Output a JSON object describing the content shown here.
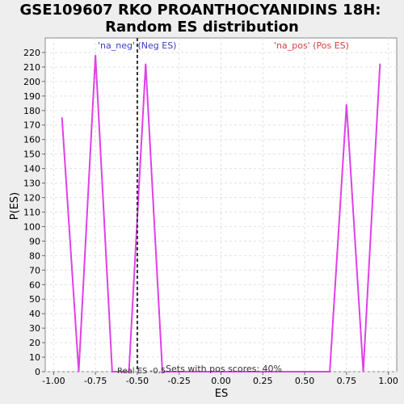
{
  "chart_data": {
    "type": "line",
    "title_lines": [
      "GSE109607 RKO PROANTHOCYANIDINS 18H:",
      "Random ES distribution"
    ],
    "xlabel": "ES",
    "ylabel": "P(ES)",
    "xlim": [
      -1.05,
      1.05
    ],
    "ylim": [
      0,
      230
    ],
    "x_ticks": [
      -1.0,
      -0.75,
      -0.5,
      -0.25,
      0.0,
      0.25,
      0.5,
      0.75,
      1.0
    ],
    "x_tick_labels": [
      "-1.00",
      "-0.75",
      "-0.50",
      "-0.25",
      "0.00",
      "0.25",
      "0.50",
      "0.75",
      "1.00"
    ],
    "y_ticks": [
      0,
      10,
      20,
      30,
      40,
      50,
      60,
      70,
      80,
      90,
      100,
      110,
      120,
      130,
      140,
      150,
      160,
      170,
      180,
      190,
      200,
      210,
      220
    ],
    "grid": true,
    "series": [
      {
        "color": "#e040e8",
        "x": [
          -0.95,
          -0.85,
          -0.75,
          -0.65,
          -0.55,
          -0.45,
          -0.35,
          -0.25,
          0.65,
          0.75,
          0.85,
          0.95
        ],
        "y": [
          175,
          0,
          218,
          0,
          0,
          212,
          0,
          0,
          0,
          184,
          0,
          212
        ]
      }
    ],
    "real_es_line": {
      "x": -0.5,
      "color": "#333333",
      "style": "dashed"
    },
    "annotations": {
      "neg_label": "'na_neg' (Neg ES)",
      "neg_color": "#3a3ac8",
      "pos_label": "'na_pos' (Pos ES)",
      "pos_color": "#d84040",
      "real_es_label": "Real ES -0.5",
      "pos_scores_label": "Sets with pos scores: 40%"
    }
  }
}
